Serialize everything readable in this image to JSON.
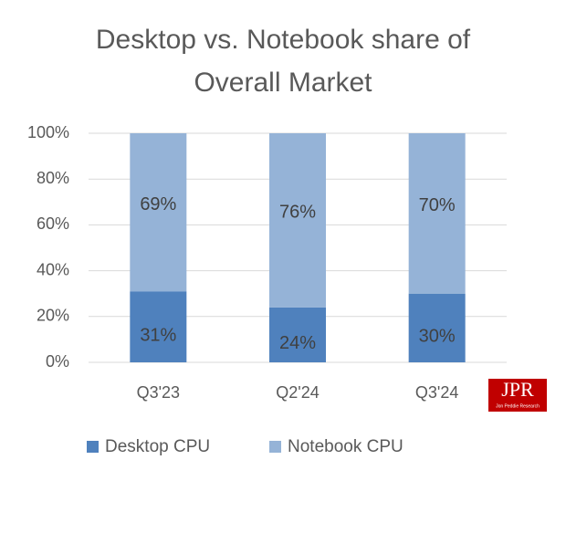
{
  "chart_data": {
    "type": "stacked-bar",
    "title": [
      "Desktop vs. Notebook share of",
      "Overall Market"
    ],
    "categories": [
      "Q3'23",
      "Q2'24",
      "Q3'24"
    ],
    "series": [
      {
        "name": "Desktop CPU",
        "color": "#4f81bd",
        "values": [
          31,
          24,
          30
        ],
        "value_labels": [
          "31%",
          "24%",
          "30%"
        ]
      },
      {
        "name": "Notebook CPU",
        "color": "#95b3d7",
        "values": [
          69,
          76,
          70
        ],
        "value_labels": [
          "69%",
          "76%",
          "70%"
        ]
      }
    ],
    "ylim": [
      0,
      100
    ],
    "yticks": [
      {
        "value": 0,
        "label": "0%"
      },
      {
        "value": 20,
        "label": "20%"
      },
      {
        "value": 40,
        "label": "40%"
      },
      {
        "value": 60,
        "label": "60%"
      },
      {
        "value": 80,
        "label": "80%"
      },
      {
        "value": 100,
        "label": "100%"
      }
    ],
    "grid": true,
    "legend": "bottom",
    "logo": {
      "text": "JPR",
      "subtext": "Jon Peddie Research"
    }
  }
}
